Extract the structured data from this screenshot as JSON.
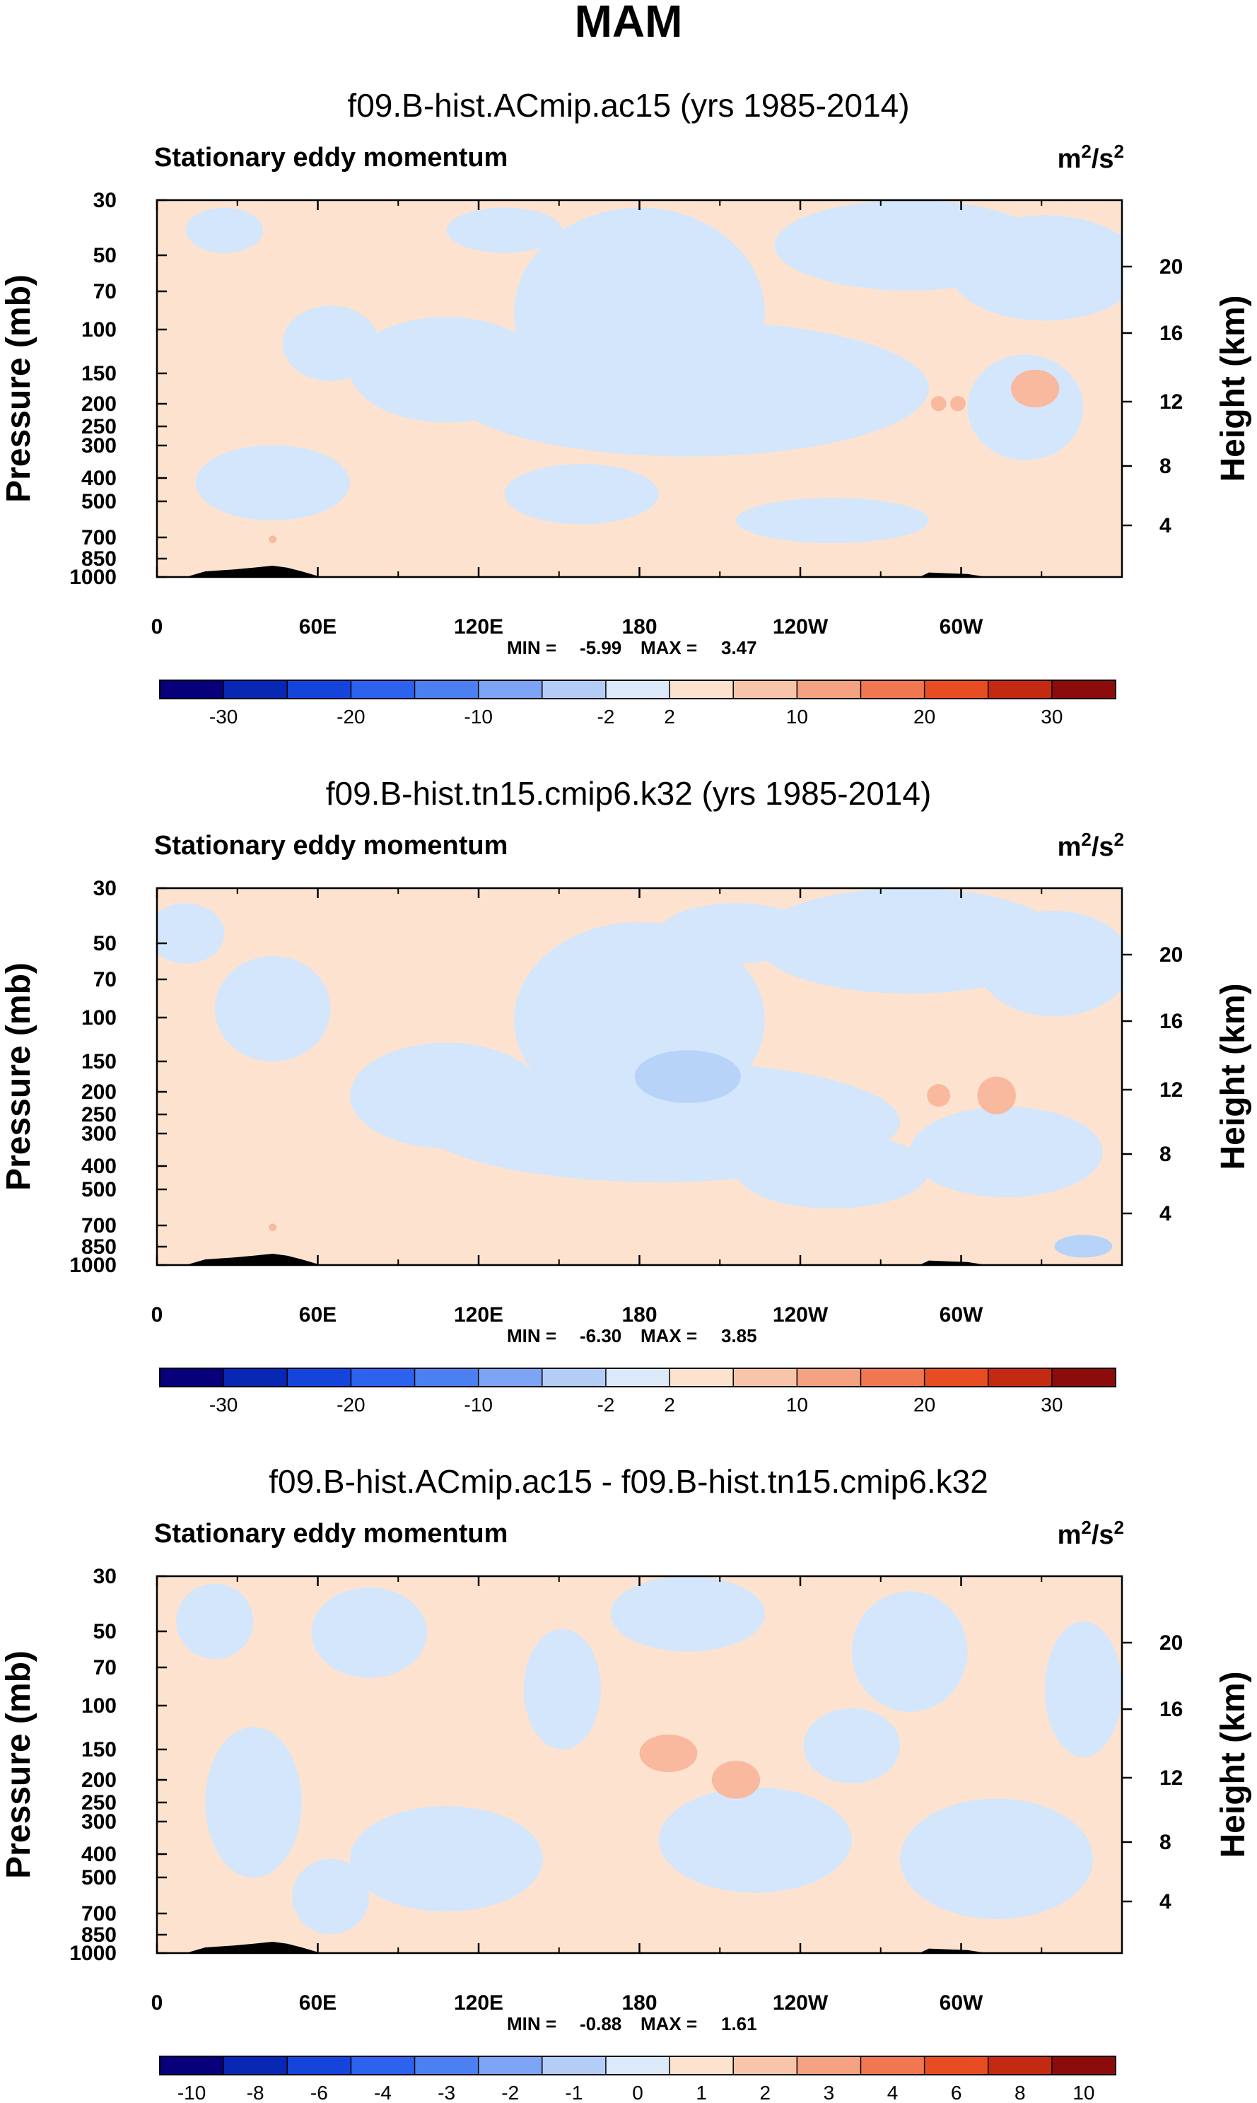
{
  "figure_title": "MAM",
  "colors": {
    "neg_light": "#d3e6fb",
    "neg_mid": "#b7d3f7",
    "pos_light": "#fde3cf",
    "pos_mid": "#f8b99e",
    "terrain": "#000000"
  },
  "colorbar_colors": [
    "#06007a",
    "#0827b4",
    "#1444dc",
    "#2c62ee",
    "#4c80f2",
    "#7ea4f5",
    "#b4cdf7",
    "#dce9fb",
    "#fde3cf",
    "#f8c4aa",
    "#f4a282",
    "#f07750",
    "#e84c22",
    "#c42a12",
    "#8c0c0c"
  ],
  "chart_data": [
    {
      "type": "contour",
      "title": "f09.B-hist.ACmip.ac15 (yrs 1985-2014)",
      "left_label": "Stationary eddy momentum",
      "units_base": "m",
      "units_exp1": "2",
      "units_mid": "/s",
      "units_exp2": "2",
      "ylabel": "Pressure (mb)",
      "ylabel_right": "Height (km)",
      "x_ticks": [
        "0",
        "60E",
        "120E",
        "180",
        "120W",
        "60W"
      ],
      "y_ticks": [
        "30",
        "50",
        "70",
        "100",
        "150",
        "200",
        "250",
        "300",
        "400",
        "500",
        "700",
        "850",
        "1000"
      ],
      "height_ticks": [
        "20",
        "16",
        "12",
        "8",
        "4"
      ],
      "min_label": "MIN =",
      "min_value": "-5.99",
      "max_label": "MAX =",
      "max_value": "3.47",
      "colorbar_labels": [
        "-30",
        "-20",
        "-10",
        "-2",
        "2",
        "10",
        "20",
        "30"
      ]
    },
    {
      "type": "contour",
      "title": "f09.B-hist.tn15.cmip6.k32 (yrs 1985-2014)",
      "left_label": "Stationary eddy momentum",
      "units_base": "m",
      "units_exp1": "2",
      "units_mid": "/s",
      "units_exp2": "2",
      "ylabel": "Pressure (mb)",
      "ylabel_right": "Height (km)",
      "x_ticks": [
        "0",
        "60E",
        "120E",
        "180",
        "120W",
        "60W"
      ],
      "y_ticks": [
        "30",
        "50",
        "70",
        "100",
        "150",
        "200",
        "250",
        "300",
        "400",
        "500",
        "700",
        "850",
        "1000"
      ],
      "height_ticks": [
        "20",
        "16",
        "12",
        "8",
        "4"
      ],
      "min_label": "MIN =",
      "min_value": "-6.30",
      "max_label": "MAX =",
      "max_value": "3.85",
      "colorbar_labels": [
        "-30",
        "-20",
        "-10",
        "-2",
        "2",
        "10",
        "20",
        "30"
      ]
    },
    {
      "type": "contour",
      "title": "f09.B-hist.ACmip.ac15 - f09.B-hist.tn15.cmip6.k32",
      "left_label": "Stationary eddy momentum",
      "units_base": "m",
      "units_exp1": "2",
      "units_mid": "/s",
      "units_exp2": "2",
      "ylabel": "Pressure (mb)",
      "ylabel_right": "Height (km)",
      "x_ticks": [
        "0",
        "60E",
        "120E",
        "180",
        "120W",
        "60W"
      ],
      "y_ticks": [
        "30",
        "50",
        "70",
        "100",
        "150",
        "200",
        "250",
        "300",
        "400",
        "500",
        "700",
        "850",
        "1000"
      ],
      "height_ticks": [
        "20",
        "16",
        "12",
        "8",
        "4"
      ],
      "min_label": "MIN =",
      "min_value": "-0.88",
      "max_label": "MAX =",
      "max_value": "1.61",
      "colorbar_labels": [
        "-10",
        "-8",
        "-6",
        "-4",
        "-3",
        "-2",
        "-1",
        "0",
        "1",
        "2",
        "3",
        "4",
        "6",
        "8",
        "10"
      ]
    }
  ]
}
